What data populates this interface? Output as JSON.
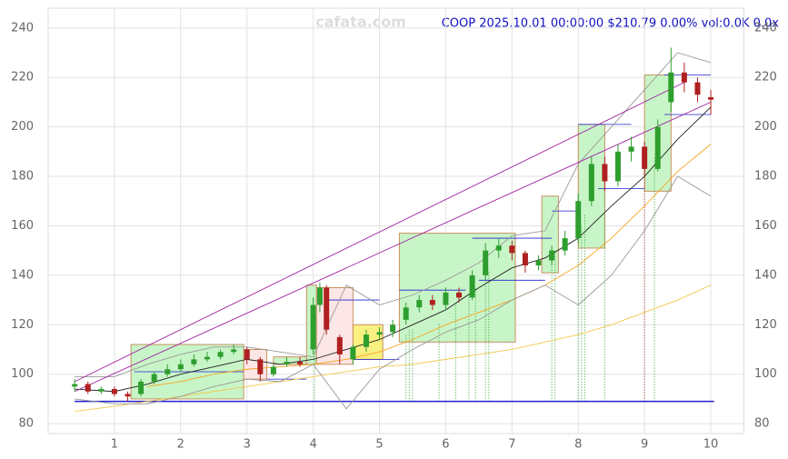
{
  "chart_data": {
    "type": "candlestick",
    "title": "COOP 2025.10.01 00:00:00 $210.79 0.00% vol:0.0K 0.0x",
    "watermark": "cafata.com",
    "xlim": [
      0,
      10.5
    ],
    "ylim": [
      76,
      248
    ],
    "xticks": [
      1,
      2,
      3,
      4,
      5,
      6,
      7,
      8,
      9,
      10
    ],
    "yticks": [
      80,
      100,
      120,
      140,
      160,
      180,
      200,
      220,
      240
    ],
    "grid": true,
    "up_color": "#2e9e2e",
    "down_color": "#b02020",
    "candles": {
      "x": [
        0.4,
        0.6,
        0.8,
        1.0,
        1.2,
        1.4,
        1.6,
        1.8,
        2.0,
        2.2,
        2.4,
        2.6,
        2.8,
        3.0,
        3.2,
        3.4,
        3.6,
        3.8,
        4.0,
        4.1,
        4.2,
        4.4,
        4.6,
        4.8,
        5.0,
        5.2,
        5.4,
        5.6,
        5.8,
        6.0,
        6.2,
        6.4,
        6.6,
        6.8,
        7.0,
        7.2,
        7.4,
        7.6,
        7.8,
        8.0,
        8.2,
        8.4,
        8.6,
        8.8,
        9.0,
        9.2,
        9.4,
        9.6,
        9.8,
        10.0
      ],
      "open": [
        95,
        96,
        93,
        94,
        92,
        92,
        97,
        100,
        102,
        104,
        106,
        107,
        109,
        110,
        106,
        100,
        104,
        105,
        110,
        128,
        135,
        115,
        106,
        111,
        116,
        117,
        122,
        127,
        130,
        128,
        133,
        131,
        140,
        150,
        152,
        149,
        144,
        146,
        150,
        155,
        170,
        185,
        178,
        190,
        192,
        183,
        210,
        222,
        218,
        212
      ],
      "high": [
        98,
        97,
        95,
        95,
        93,
        98,
        101,
        104,
        106,
        108,
        109,
        110,
        112,
        111,
        107,
        104,
        107,
        107,
        131,
        137,
        136,
        116,
        112,
        118,
        119,
        122,
        129,
        132,
        132,
        135,
        135,
        142,
        153,
        155,
        154,
        150,
        148,
        152,
        158,
        173,
        188,
        188,
        193,
        196,
        194,
        203,
        232,
        226,
        220,
        215
      ],
      "low": [
        93,
        92,
        92,
        91,
        89,
        91,
        96,
        99,
        101,
        103,
        105,
        106,
        108,
        104,
        97,
        99,
        103,
        103,
        108,
        125,
        116,
        104,
        104,
        109,
        114,
        115,
        120,
        125,
        126,
        126,
        129,
        130,
        138,
        147,
        146,
        141,
        142,
        144,
        148,
        153,
        168,
        174,
        176,
        186,
        180,
        182,
        206,
        214,
        210,
        205
      ],
      "close": [
        96,
        93,
        94,
        92,
        91,
        97,
        100,
        102,
        104,
        106,
        107,
        109,
        110,
        106,
        100,
        103,
        105,
        104,
        128,
        135,
        118,
        108,
        111,
        116,
        117,
        120,
        127,
        130,
        128,
        133,
        131,
        140,
        150,
        152,
        149,
        144,
        146,
        150,
        155,
        170,
        185,
        178,
        190,
        192,
        183,
        200,
        222,
        218,
        213,
        211
      ]
    },
    "lines": [
      {
        "color": "#222222",
        "x": [
          0.4,
          1,
          1.5,
          2,
          2.5,
          3,
          3.5,
          4,
          4.5,
          5,
          5.5,
          6,
          6.5,
          7,
          7.5,
          8,
          8.5,
          9,
          9.5,
          10
        ],
        "values": [
          94,
          93,
          96,
          100,
          103,
          106,
          104,
          106,
          110,
          114,
          120,
          126,
          135,
          143,
          147,
          155,
          168,
          180,
          195,
          208
        ]
      },
      {
        "color": "#f5a623",
        "x": [
          0.4,
          1,
          1.5,
          2,
          2.5,
          3,
          3.5,
          4,
          4.5,
          5,
          5.5,
          6,
          6.5,
          7,
          7.5,
          8,
          8.5,
          9,
          9.5,
          10
        ],
        "values": [
          null,
          null,
          95,
          97,
          100,
          102,
          103,
          104,
          106,
          109,
          114,
          120,
          125,
          130,
          136,
          144,
          155,
          168,
          182,
          193
        ]
      },
      {
        "color": "#f2c94c",
        "x": [
          0.4,
          1,
          1.5,
          2,
          2.5,
          3,
          3.5,
          4,
          4.5,
          5,
          5.5,
          6,
          6.5,
          7,
          7.5,
          8,
          8.5,
          9,
          9.5,
          10
        ],
        "values": [
          85,
          87,
          89,
          91,
          93,
          95,
          97,
          99,
          101,
          103,
          104,
          106,
          108,
          110,
          113,
          116,
          120,
          125,
          130,
          136
        ]
      },
      {
        "color": "#999999",
        "x": [
          0.4,
          1,
          1.5,
          2,
          2.5,
          3,
          3.5,
          4,
          4.5,
          5,
          5.5,
          6,
          6.5,
          7,
          7.5,
          8,
          8.5,
          9,
          9.5,
          10
        ],
        "values": [
          99,
          99,
          104,
          108,
          111,
          111,
          109,
          107,
          136,
          128,
          132,
          138,
          145,
          156,
          158,
          185,
          200,
          215,
          230,
          226
        ]
      },
      {
        "color": "#999999",
        "x": [
          0.4,
          1,
          1.5,
          2,
          2.5,
          3,
          3.5,
          4,
          4.5,
          5,
          5.5,
          6,
          6.5,
          7,
          7.5,
          8,
          8.5,
          9,
          9.5,
          10
        ],
        "values": [
          90,
          88,
          88,
          91,
          95,
          98,
          97,
          104,
          86,
          102,
          110,
          117,
          122,
          130,
          136,
          128,
          140,
          158,
          180,
          172
        ]
      },
      {
        "color": "#a020a0",
        "x": [
          0.4,
          9.6
        ],
        "values": [
          97,
          218
        ]
      },
      {
        "color": "#a020a0",
        "x": [
          0.4,
          10
        ],
        "values": [
          93,
          210
        ]
      }
    ],
    "boxes": [
      {
        "x": [
          1.25,
          2.95
        ],
        "y": [
          90,
          112
        ],
        "color": "#c8f5c8"
      },
      {
        "x": [
          2.95,
          3.3
        ],
        "y": [
          98,
          110
        ],
        "color": "#fde6e6"
      },
      {
        "x": [
          3.4,
          3.9
        ],
        "y": [
          104,
          107
        ],
        "color": "#c8f5c8"
      },
      {
        "x": [
          3.9,
          4.05
        ],
        "y": [
          104,
          136
        ],
        "color": "#c8f5c8"
      },
      {
        "x": [
          4.05,
          4.6
        ],
        "y": [
          104,
          135
        ],
        "color": "#fde6e6"
      },
      {
        "x": [
          4.6,
          5.05
        ],
        "y": [
          106,
          120
        ],
        "color": "#f8f080"
      },
      {
        "x": [
          5.3,
          7.05
        ],
        "y": [
          113,
          157
        ],
        "color": "#c8f5c8"
      },
      {
        "x": [
          7.45,
          7.7
        ],
        "y": [
          141,
          172
        ],
        "color": "#c8f5c8"
      },
      {
        "x": [
          8.0,
          8.4
        ],
        "y": [
          151,
          201
        ],
        "color": "#c8f5c8"
      },
      {
        "x": [
          9.0,
          9.4
        ],
        "y": [
          174,
          221
        ],
        "color": "#c8f5c8"
      }
    ],
    "levels": {
      "x0": [
        0.4,
        1.3,
        3.3,
        4.2,
        4.6,
        5.3,
        6.4,
        6.5,
        7.6,
        8.0,
        8.3,
        9.3,
        9.3
      ],
      "x1": [
        10.05,
        2.95,
        3.9,
        5.0,
        5.3,
        6.3,
        7.6,
        7.5,
        8.0,
        8.8,
        9.0,
        10.0,
        10.0
      ],
      "y": [
        89,
        101,
        98,
        130,
        106,
        134,
        155,
        138,
        166,
        201,
        175,
        205,
        221
      ]
    },
    "signals": {
      "x": [
        4.02,
        5.4,
        5.45,
        5.5,
        5.9,
        6.15,
        6.35,
        6.45,
        6.6,
        6.65,
        7.6,
        7.65,
        8.0,
        8.05,
        8.1,
        8.4,
        9.0,
        9.15
      ],
      "y": [
        112,
        116,
        118,
        118,
        121,
        128,
        133,
        135,
        140,
        142,
        147,
        150,
        155,
        160,
        165,
        176,
        185,
        188
      ],
      "color": [
        "#2e9e2e",
        "#2e9e2e",
        "#2e9e2e",
        "#2e9e2e",
        "#2e9e2e",
        "#2e9e2e",
        "#2e9e2e",
        "#2e9e2e",
        "#2e9e2e",
        "#2e9e2e",
        "#2e9e2e",
        "#2e9e2e",
        "#2e9e2e",
        "#2e9e2e",
        "#2e9e2e",
        "#2e9e2e",
        "#b02020",
        "#2e9e2e"
      ]
    }
  }
}
